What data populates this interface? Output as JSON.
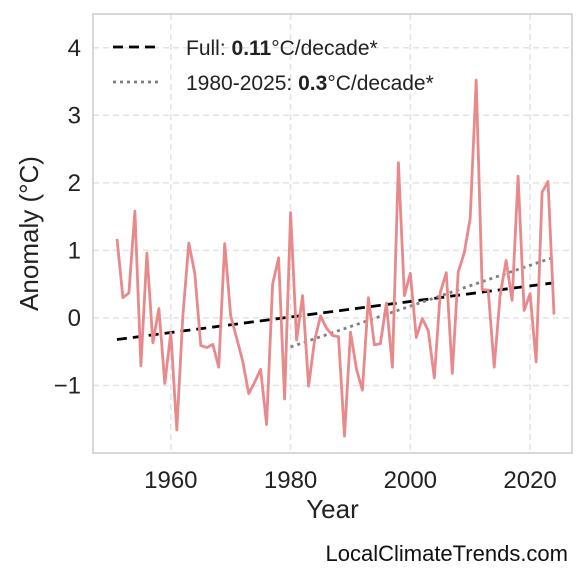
{
  "chart_data": {
    "type": "line",
    "xlabel": "Year",
    "ylabel": "Anomaly (°C)",
    "xlim": [
      1947,
      2027
    ],
    "ylim": [
      -2,
      4.5
    ],
    "x_ticks": [
      1960,
      1980,
      2000,
      2020
    ],
    "x_tick_labels": [
      "1960",
      "1980",
      "2000",
      "2020"
    ],
    "y_ticks": [
      -1,
      0,
      1,
      2,
      3,
      4
    ],
    "y_tick_labels": [
      "−1",
      "0",
      "1",
      "2",
      "3",
      "4"
    ],
    "grid": true,
    "legend_placement": "top-left",
    "credit": "LocalClimateTrends.com",
    "series": [
      {
        "x": [
          1951,
          1952,
          1953,
          1954,
          1955,
          1956,
          1957,
          1958,
          1959,
          1960,
          1961,
          1962,
          1963,
          1964,
          1965,
          1966,
          1967,
          1968,
          1969,
          1970,
          1971,
          1972,
          1973,
          1974,
          1975,
          1976,
          1977,
          1978,
          1979,
          1980,
          1981,
          1982,
          1983,
          1984,
          1985,
          1986,
          1987,
          1988,
          1989,
          1990,
          1991,
          1992,
          1993,
          1994,
          1995,
          1996,
          1997,
          1998,
          1999,
          2000,
          2001,
          2002,
          2003,
          2004,
          2005,
          2006,
          2007,
          2008,
          2009,
          2010,
          2011,
          2012,
          2013,
          2014,
          2015,
          2016,
          2017,
          2018,
          2019,
          2020,
          2021,
          2022,
          2023,
          2024
        ],
        "values": [
          1.17,
          0.3,
          0.37,
          1.58,
          -0.71,
          0.96,
          -0.37,
          0.14,
          -0.97,
          -0.22,
          -1.66,
          0.02,
          1.11,
          0.66,
          -0.41,
          -0.44,
          -0.39,
          -0.73,
          1.1,
          0.03,
          -0.3,
          -0.64,
          -1.12,
          -0.95,
          -0.76,
          -1.58,
          0.5,
          0.89,
          -1.2,
          1.56,
          -0.33,
          0.33,
          -1.01,
          -0.34,
          0.03,
          -0.15,
          -0.26,
          -0.28,
          -1.75,
          -0.21,
          -0.76,
          -1.07,
          0.3,
          -0.4,
          -0.38,
          0.22,
          -0.73,
          2.3,
          0.33,
          0.66,
          -0.29,
          -0.01,
          -0.19,
          -0.89,
          0.38,
          0.67,
          -0.82,
          0.68,
          0.96,
          1.48,
          3.52,
          0.42,
          0.41,
          -0.73,
          0.33,
          0.85,
          0.26,
          2.1,
          0.11,
          0.36,
          -0.65,
          1.86,
          2.02,
          0.05
        ],
        "color": "#e8898b",
        "style": "solid"
      }
    ],
    "trends": [
      {
        "label_prefix": "Full: ",
        "label_value": "0.11",
        "label_suffix": "°C/decade*",
        "x": [
          1951,
          2024
        ],
        "y": [
          -0.32,
          0.52
        ],
        "color": "#000000",
        "style": "dashed"
      },
      {
        "label_prefix": "1980-2025: ",
        "label_value": "0.3",
        "label_suffix": "°C/decade*",
        "x": [
          1980,
          2024
        ],
        "y": [
          -0.43,
          0.9
        ],
        "color": "#7f7f7f",
        "style": "dotted"
      }
    ]
  }
}
